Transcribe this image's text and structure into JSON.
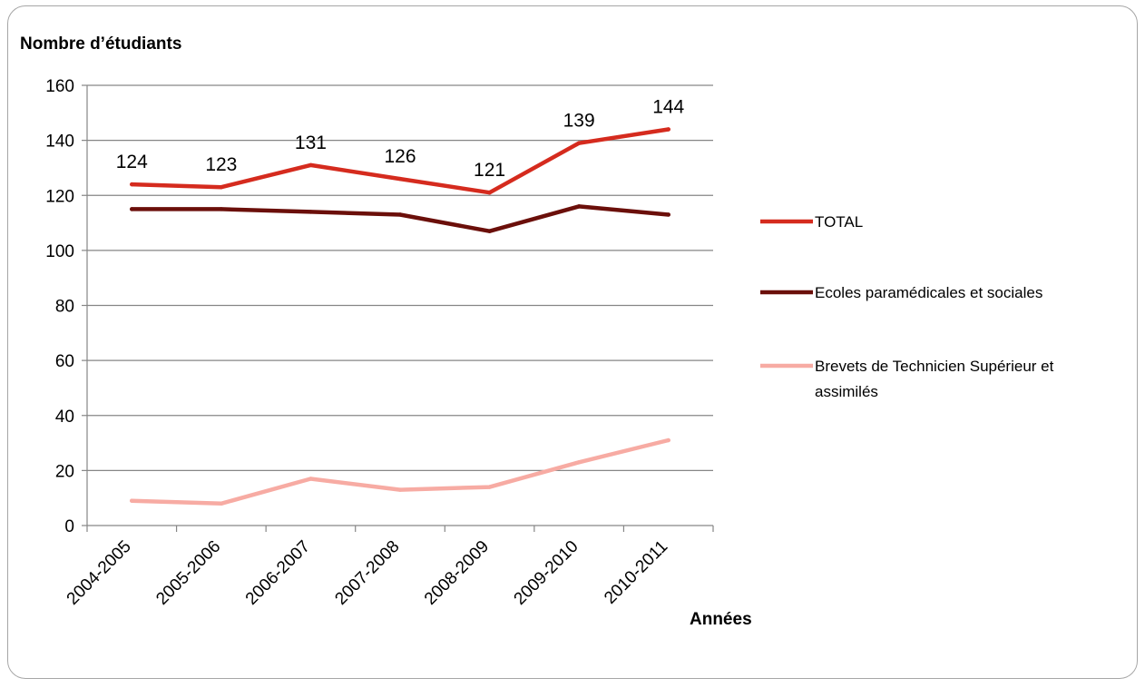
{
  "chart_data": {
    "type": "line",
    "ylabel": "Nombre d’étudiants",
    "xlabel": "Années",
    "categories": [
      "2004-2005",
      "2005-2006",
      "2006-2007",
      "2007-2008",
      "2008-2009",
      "2009-2010",
      "2010-2011"
    ],
    "ylim": [
      0,
      160
    ],
    "yticks": [
      0,
      20,
      40,
      60,
      80,
      100,
      120,
      140,
      160
    ],
    "grid": true,
    "legend_position": "right",
    "series": [
      {
        "name": "TOTAL",
        "color": "#d52b1e",
        "values": [
          124,
          123,
          131,
          126,
          121,
          139,
          144
        ],
        "data_labels": true
      },
      {
        "name": "Ecoles paramédicales et sociales",
        "color": "#6b0f0a",
        "values": [
          115,
          115,
          114,
          113,
          107,
          116,
          113
        ],
        "data_labels": false
      },
      {
        "name": "Brevets de Technicien Supérieur et assimilés",
        "legend_lines": [
          "Brevets de Technicien Supérieur et",
          "assimilés"
        ],
        "color": "#f7aba3",
        "values": [
          9,
          8,
          17,
          13,
          14,
          23,
          31
        ],
        "data_labels": false
      }
    ]
  }
}
